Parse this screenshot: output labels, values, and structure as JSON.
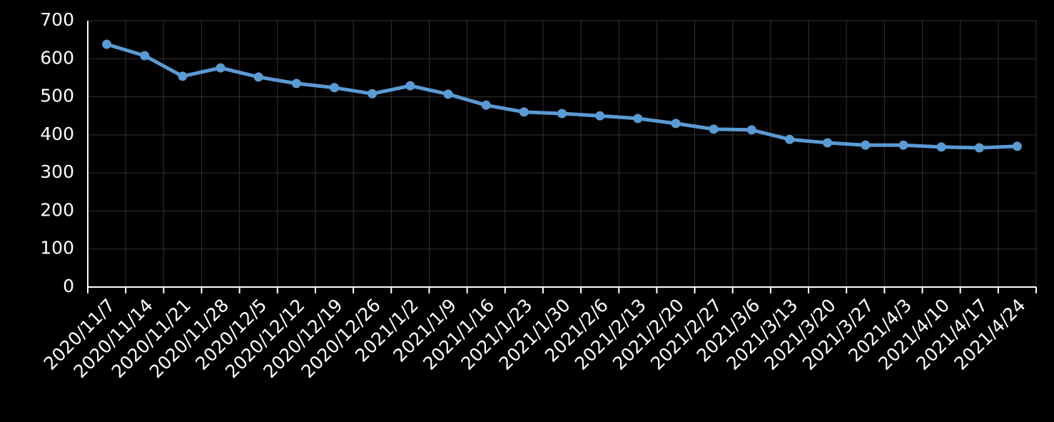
{
  "chart_data": {
    "type": "line",
    "categories": [
      "2020/11/7",
      "2020/11/14",
      "2020/11/21",
      "2020/11/28",
      "2020/12/5",
      "2020/12/12",
      "2020/12/19",
      "2020/12/26",
      "2021/1/2",
      "2021/1/9",
      "2021/1/16",
      "2021/1/23",
      "2021/1/30",
      "2021/2/6",
      "2021/2/13",
      "2021/2/20",
      "2021/2/27",
      "2021/3/6",
      "2021/3/13",
      "2021/3/20",
      "2021/3/27",
      "2021/4/3",
      "2021/4/10",
      "2021/4/17",
      "2021/4/24"
    ],
    "values": [
      638,
      608,
      554,
      576,
      552,
      535,
      524,
      508,
      529,
      507,
      478,
      460,
      456,
      450,
      443,
      430,
      415,
      413,
      388,
      379,
      373,
      373,
      368,
      366,
      370
    ],
    "color": "#5b9bd5",
    "ylim": [
      0,
      700
    ],
    "yticks": [
      0,
      100,
      200,
      300,
      400,
      500,
      600,
      700
    ],
    "grid": true
  }
}
